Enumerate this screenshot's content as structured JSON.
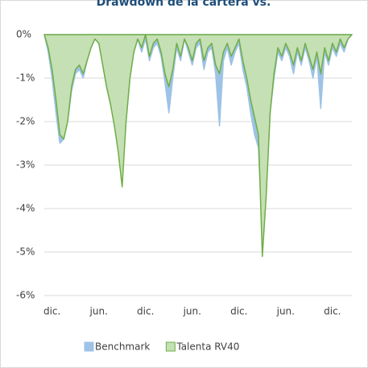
{
  "chart_data": {
    "type": "area",
    "title": "Drawdown de la cartera vs.",
    "categories": [
      null,
      null,
      "dic.",
      null,
      null,
      null,
      null,
      null,
      null,
      null,
      null,
      null,
      null,
      null,
      "jun.",
      null,
      null,
      null,
      null,
      null,
      null,
      null,
      null,
      null,
      null,
      null,
      "dic.",
      null,
      null,
      null,
      null,
      null,
      null,
      null,
      null,
      null,
      null,
      null,
      "jun.",
      null,
      null,
      null,
      null,
      null,
      null,
      null,
      null,
      null,
      null,
      null,
      "dic.",
      null,
      null,
      null,
      null,
      null,
      null,
      null,
      null,
      null,
      null,
      null,
      "jun.",
      null,
      null,
      null,
      null,
      null,
      null,
      null,
      null,
      null,
      null,
      null,
      "dic.",
      null,
      null,
      null,
      null,
      null
    ],
    "series": [
      {
        "name": "Benchmark",
        "color": "#9dc3e6",
        "fill": "#9dc3e6",
        "values": [
          0,
          -0.4,
          -1.0,
          -1.8,
          -2.5,
          -2.4,
          -2.0,
          -1.3,
          -0.9,
          -0.8,
          -1.0,
          -0.6,
          -0.3,
          -0.1,
          -0.2,
          -0.7,
          -1.2,
          -1.6,
          -2.0,
          -2.6,
          -3.3,
          -2.0,
          -1.0,
          -0.4,
          -0.1,
          -0.4,
          -0.1,
          -0.6,
          -0.3,
          -0.2,
          -0.5,
          -1.1,
          -1.8,
          -1.0,
          -0.3,
          -0.6,
          -0.1,
          -0.4,
          -0.7,
          -0.3,
          -0.2,
          -0.8,
          -0.4,
          -0.3,
          -0.9,
          -2.1,
          -0.6,
          -0.3,
          -0.7,
          -0.4,
          -0.2,
          -0.8,
          -1.2,
          -1.8,
          -2.3,
          -2.6,
          -4.6,
          -3.6,
          -1.8,
          -1.0,
          -0.4,
          -0.6,
          -0.3,
          -0.5,
          -0.9,
          -0.4,
          -0.7,
          -0.3,
          -0.6,
          -1.0,
          -0.5,
          -1.7,
          -0.4,
          -0.7,
          -0.3,
          -0.5,
          -0.2,
          -0.4,
          -0.1,
          0
        ]
      },
      {
        "name": "Talenta RV40",
        "color": "#70ad47",
        "fill": "#c5e0b4",
        "values": [
          0,
          -0.3,
          -0.8,
          -1.5,
          -2.3,
          -2.4,
          -2.0,
          -1.2,
          -0.8,
          -0.7,
          -0.9,
          -0.6,
          -0.3,
          -0.1,
          -0.2,
          -0.7,
          -1.2,
          -1.6,
          -2.1,
          -2.7,
          -3.5,
          -2.0,
          -1.0,
          -0.4,
          -0.1,
          -0.3,
          0,
          -0.5,
          -0.2,
          -0.1,
          -0.4,
          -0.9,
          -1.2,
          -0.8,
          -0.2,
          -0.5,
          -0.1,
          -0.3,
          -0.6,
          -0.2,
          -0.1,
          -0.6,
          -0.3,
          -0.2,
          -0.7,
          -0.9,
          -0.4,
          -0.2,
          -0.5,
          -0.3,
          -0.1,
          -0.6,
          -1.0,
          -1.5,
          -1.9,
          -2.3,
          -5.1,
          -3.7,
          -1.8,
          -0.9,
          -0.3,
          -0.5,
          -0.2,
          -0.4,
          -0.7,
          -0.3,
          -0.6,
          -0.2,
          -0.5,
          -0.8,
          -0.4,
          -0.9,
          -0.3,
          -0.6,
          -0.2,
          -0.4,
          -0.1,
          -0.3,
          -0.1,
          0
        ]
      }
    ],
    "ylim": [
      -6,
      0
    ],
    "yticks": [
      {
        "value": 0,
        "label": "0%"
      },
      {
        "value": -1,
        "label": "-1%"
      },
      {
        "value": -2,
        "label": "-2%"
      },
      {
        "value": -3,
        "label": "-3%"
      },
      {
        "value": -4,
        "label": "-4%"
      },
      {
        "value": -5,
        "label": "-5%"
      },
      {
        "value": -6,
        "label": "-6%"
      }
    ],
    "grid": true,
    "legend": "bottom"
  }
}
